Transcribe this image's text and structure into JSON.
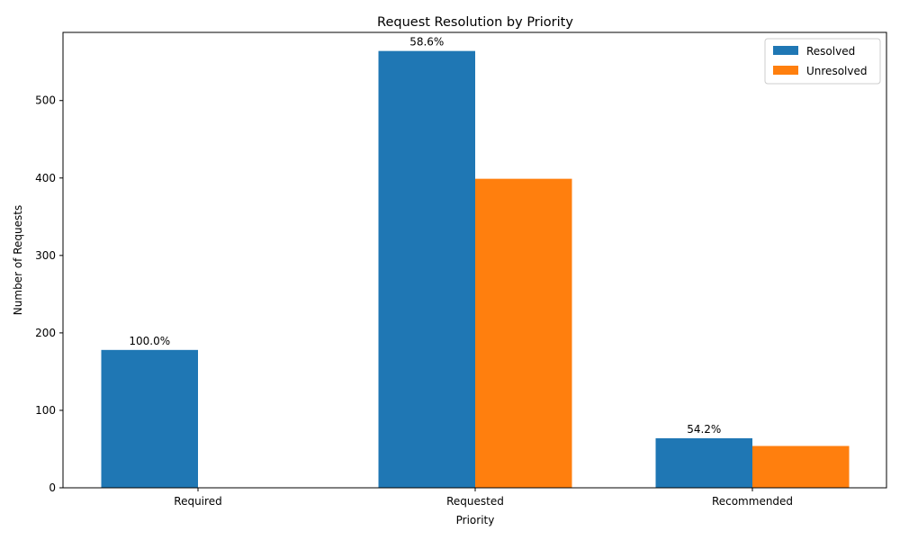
{
  "chart_data": {
    "type": "bar",
    "title": "Request Resolution by Priority",
    "xlabel": "Priority",
    "ylabel": "Number of Requests",
    "categories": [
      "Required",
      "Requested",
      "Recommended"
    ],
    "series": [
      {
        "name": "Resolved",
        "values": [
          178,
          564,
          64
        ],
        "color": "#1f77b4"
      },
      {
        "name": "Unresolved",
        "values": [
          0,
          399,
          54
        ],
        "color": "#ff7f0e"
      }
    ],
    "bar_labels": [
      "100.0%",
      "58.6%",
      "54.2%"
    ],
    "ylim": [
      0,
      588
    ],
    "yticks": [
      0,
      100,
      200,
      300,
      400,
      500
    ],
    "grid": false,
    "legend_position": "top-right"
  }
}
